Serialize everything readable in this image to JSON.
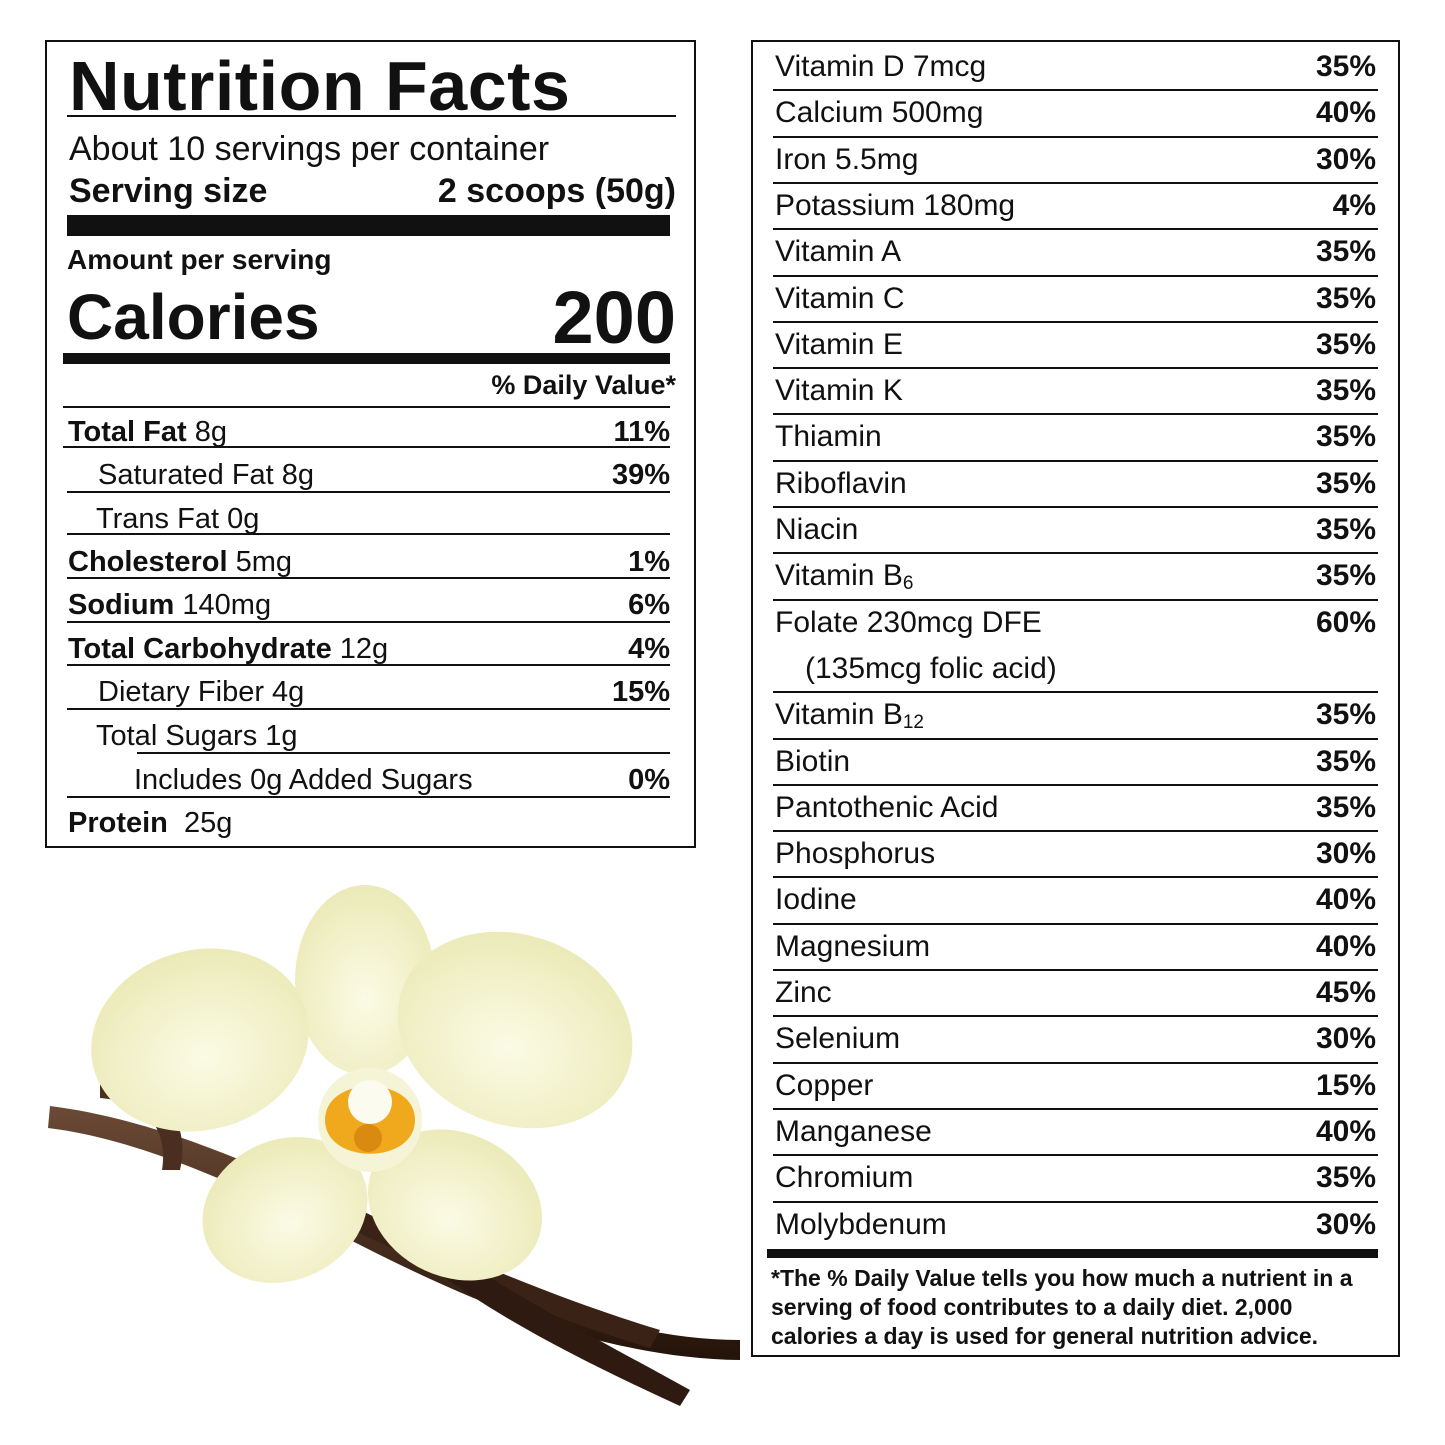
{
  "label": {
    "title": "Nutrition Facts",
    "servings_per_container": "About 10 servings per container",
    "serving_size_label": "Serving size",
    "serving_size_value": "2 scoops (50g)",
    "amount_per_serving": "Amount per serving",
    "calories_label": "Calories",
    "calories_value": "200",
    "daily_value_header": "% Daily Value*",
    "nutrients": [
      {
        "name": "Total Fat",
        "amount": " 8g",
        "pct": "11%"
      },
      {
        "name": "",
        "amount": "Saturated Fat 8g",
        "pct": "39%"
      },
      {
        "name": "",
        "amount": "Trans Fat 0g",
        "pct": ""
      },
      {
        "name": "Cholesterol",
        "amount": " 5mg",
        "pct": "1%"
      },
      {
        "name": "Sodium",
        "amount": " 140mg",
        "pct": "6%"
      },
      {
        "name": "Total Carbohydrate",
        "amount": " 12g",
        "pct": "4%"
      },
      {
        "name": "",
        "amount": "Dietary Fiber 4g",
        "pct": "15%"
      },
      {
        "name": "",
        "amount": "Total Sugars 1g",
        "pct": ""
      },
      {
        "name": "",
        "amount": "Includes 0g Added Sugars",
        "pct": "0%"
      },
      {
        "name": "Protein",
        "amount": "  25g",
        "pct": ""
      }
    ]
  },
  "micronutrients": {
    "items": [
      {
        "name": "Vitamin D 7mcg",
        "pct": "35%"
      },
      {
        "name": "Calcium 500mg",
        "pct": "40%"
      },
      {
        "name": "Iron 5.5mg",
        "pct": "30%"
      },
      {
        "name": "Potassium 180mg",
        "pct": "4%"
      },
      {
        "name": "Vitamin A",
        "pct": "35%"
      },
      {
        "name": "Vitamin C",
        "pct": "35%"
      },
      {
        "name": "Vitamin E",
        "pct": "35%"
      },
      {
        "name": "Vitamin K",
        "pct": "35%"
      },
      {
        "name": "Thiamin",
        "pct": "35%"
      },
      {
        "name": "Riboflavin",
        "pct": "35%"
      },
      {
        "name": "Niacin",
        "pct": "35%"
      },
      {
        "name": "Vitamin B",
        "sub": "6",
        "pct": "35%"
      },
      {
        "name": "Folate 230mcg DFE",
        "pct": "60%"
      },
      {
        "name": "(135mcg folic acid)",
        "pct": ""
      },
      {
        "name": "Vitamin B",
        "sub": "12",
        "pct": "35%"
      },
      {
        "name": "Biotin",
        "pct": "35%"
      },
      {
        "name": "Pantothenic Acid",
        "pct": "35%"
      },
      {
        "name": "Phosphorus",
        "pct": "30%"
      },
      {
        "name": "Iodine",
        "pct": "40%"
      },
      {
        "name": "Magnesium",
        "pct": "40%"
      },
      {
        "name": "Zinc",
        "pct": "45%"
      },
      {
        "name": "Selenium",
        "pct": "30%"
      },
      {
        "name": "Copper",
        "pct": "15%"
      },
      {
        "name": "Manganese",
        "pct": "40%"
      },
      {
        "name": "Chromium",
        "pct": "35%"
      },
      {
        "name": "Molybdenum",
        "pct": "30%"
      }
    ],
    "footnote": "*The % Daily Value tells you how much a nutrient in a serving of food contributes to a daily diet.  2,000 calories a day is used for general nutrition advice."
  },
  "colors": {
    "ink": "#111111",
    "petal": "#f3f2c9",
    "orchid_center": "#f0a81c",
    "vanilla_pod": "#3b2418"
  },
  "image": {
    "icon": "vanilla-orchid-illustration"
  }
}
